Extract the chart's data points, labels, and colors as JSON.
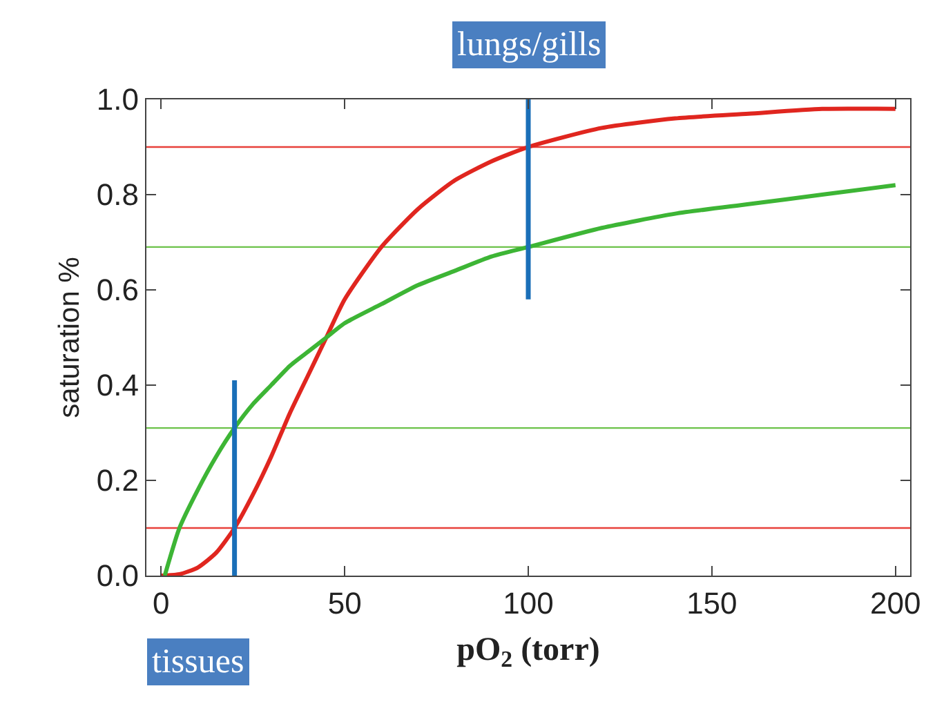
{
  "chart_data": {
    "type": "line",
    "xlabel": "pO$_{2}$ (torr)",
    "ylabel": "saturation %",
    "annotations": [
      "lungs/gills",
      "tissues"
    ],
    "xlim": [
      -4,
      204
    ],
    "xticks": [
      0,
      50,
      100,
      150,
      200
    ],
    "ylim": [
      0,
      1
    ],
    "yticks": [
      {
        "value": 0,
        "label": "0.0"
      },
      {
        "value": 0.2,
        "label": "0.2"
      },
      {
        "value": 0.4,
        "label": "0.4"
      },
      {
        "value": 0.6,
        "label": "0.6"
      },
      {
        "value": 0.8,
        "label": "0.8"
      },
      {
        "value": 1,
        "label": "1.0"
      }
    ],
    "marker": "none",
    "line_style": "solid",
    "ref_lines": [
      {
        "axis": "y",
        "value": 0.9,
        "label": null,
        "color": "#e8403a"
      },
      {
        "axis": "y",
        "value": 0.1,
        "label": null,
        "color": "#e8403a"
      },
      {
        "axis": "y",
        "value": 0.69,
        "label": null,
        "color": "#6cc24a"
      },
      {
        "axis": "y",
        "value": 0.31,
        "label": null,
        "color": "#6cc24a"
      }
    ],
    "series": [
      {
        "color": "#e0261f",
        "x": [
          0,
          5,
          10,
          15,
          20,
          25,
          30,
          35,
          40,
          45,
          50,
          60,
          70,
          80,
          90,
          100,
          120,
          140,
          160,
          180,
          200
        ],
        "values": [
          0,
          0.003,
          0.017,
          0.048,
          0.1,
          0.17,
          0.25,
          0.34,
          0.42,
          0.5,
          0.58,
          0.69,
          0.77,
          0.83,
          0.87,
          0.9,
          0.94,
          0.96,
          0.97,
          0.98,
          0.98
        ]
      },
      {
        "color": "#3db535",
        "x": [
          1,
          5,
          10,
          15,
          20,
          25,
          30,
          35,
          40,
          45,
          50,
          60,
          70,
          80,
          90,
          100,
          120,
          140,
          160,
          180,
          200
        ],
        "values": [
          0,
          0.1,
          0.18,
          0.25,
          0.31,
          0.36,
          0.4,
          0.44,
          0.47,
          0.5,
          0.53,
          0.57,
          0.61,
          0.64,
          0.67,
          0.69,
          0.73,
          0.76,
          0.78,
          0.8,
          0.82
        ]
      },
      {
        "color": "#1a6fb8",
        "x": [
          100,
          100
        ],
        "values": [
          0.58,
          1.0
        ]
      },
      {
        "color": "#1a6fb8",
        "x": [
          20,
          20
        ],
        "values": [
          0,
          0.41
        ]
      }
    ]
  }
}
